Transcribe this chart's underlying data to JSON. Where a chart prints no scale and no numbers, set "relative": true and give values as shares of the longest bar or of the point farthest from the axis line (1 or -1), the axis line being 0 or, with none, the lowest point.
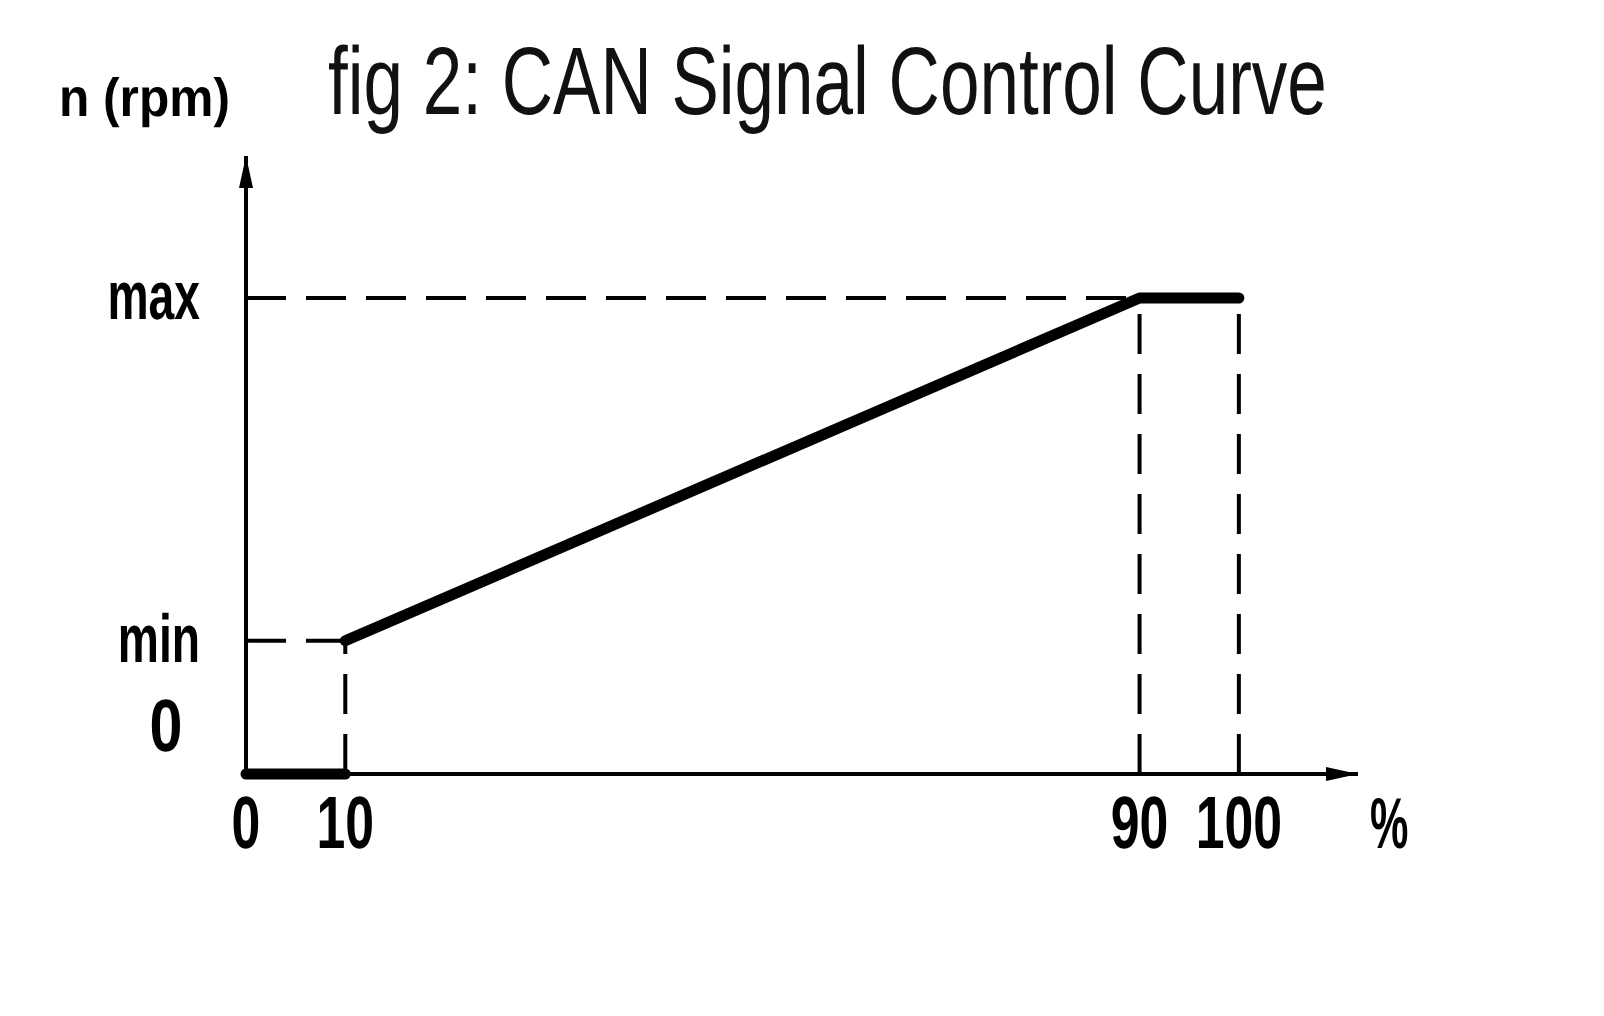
{
  "chart_data": {
    "type": "line",
    "title": "fig 2: CAN Signal Control Curve",
    "xlabel": "%",
    "ylabel": "n (rpm)",
    "relative": true,
    "xlim": [
      0,
      112
    ],
    "xticks": [
      0,
      10,
      90,
      100
    ],
    "series": [
      {
        "color": "#000000",
        "x": [
          0,
          10
        ],
        "values": [
          0,
          0
        ]
      },
      {
        "color": "#000000",
        "x": [
          10,
          90,
          100
        ],
        "values": [
          0.28,
          1,
          1
        ]
      }
    ],
    "ref_lines": [
      {
        "axis": "y",
        "value": 1,
        "label": "max",
        "color": "#000000",
        "line_style": "dashed"
      },
      {
        "axis": "y",
        "value": 0.28,
        "label": "min",
        "color": "#000000",
        "line_style": "dashed"
      },
      {
        "axis": "x",
        "value": 10,
        "color": "#000000",
        "line_style": "dashed"
      },
      {
        "axis": "x",
        "value": 90,
        "color": "#000000",
        "line_style": "dashed"
      },
      {
        "axis": "x",
        "value": 100,
        "color": "#000000",
        "line_style": "dashed"
      }
    ],
    "annotations": [
      "0"
    ]
  }
}
